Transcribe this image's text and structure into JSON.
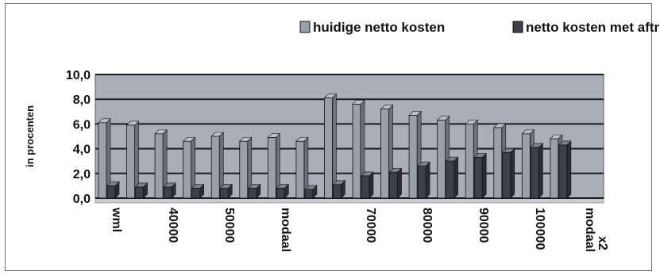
{
  "chart_data": {
    "type": "bar",
    "title": "",
    "ylabel": "in procenten",
    "xlabel": "",
    "ylim": [
      0,
      10
    ],
    "yticks": [
      "0,0",
      "2,0",
      "4,0",
      "6,0",
      "8,0",
      "10,0"
    ],
    "grid": true,
    "legend_position": "top",
    "categories": [
      "wml",
      "",
      "40000",
      "",
      "50000",
      "",
      "modaal",
      "",
      "",
      "70000",
      "",
      "80000",
      "",
      "90000",
      "",
      "100000",
      "",
      "modaal x2"
    ],
    "series": [
      {
        "name": "huidige netto kosten",
        "color": "#9aa0aa",
        "values": [
          6.1,
          5.9,
          5.2,
          4.6,
          5.0,
          4.6,
          4.9,
          4.6,
          8.1,
          7.6,
          7.2,
          6.7,
          6.3,
          6.0,
          5.7,
          5.2,
          4.8,
          0
        ]
      },
      {
        "name": "netto kosten met aftrek kinderkorting",
        "color": "#3c4048",
        "values": [
          1.0,
          0.9,
          0.9,
          0.8,
          0.8,
          0.8,
          0.8,
          0.7,
          1.1,
          1.8,
          2.1,
          2.6,
          3.0,
          3.3,
          3.7,
          4.1,
          4.3,
          0
        ]
      }
    ]
  }
}
